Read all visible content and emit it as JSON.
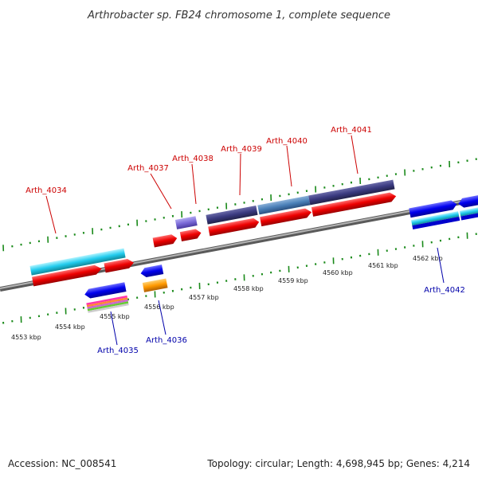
{
  "title": "Arthrobacter sp. FB24 chromosome 1, complete sequence",
  "footer": {
    "accession": "Accession: NC_008541",
    "topology": "Topology: circular; Length: 4,698,945 bp; Genes: 4,214"
  },
  "colors": {
    "top_label": "#cc0000",
    "bottom_label": "#0000aa",
    "backbone": "#888888",
    "ticks": "#1a8a1a"
  },
  "kbp_labels": [
    "4553 kbp",
    "4554 kbp",
    "4555 kbp",
    "4556 kbp",
    "4557 kbp",
    "4558 kbp",
    "4559 kbp",
    "4560 kbp",
    "4561 kbp",
    "4562 kbp"
  ],
  "genes_top": [
    "Arth_4034",
    "Arth_4037",
    "Arth_4038",
    "Arth_4039",
    "Arth_4040",
    "Arth_4041"
  ],
  "genes_bottom": [
    "Arth_4035",
    "Arth_4036",
    "Arth_4042"
  ]
}
